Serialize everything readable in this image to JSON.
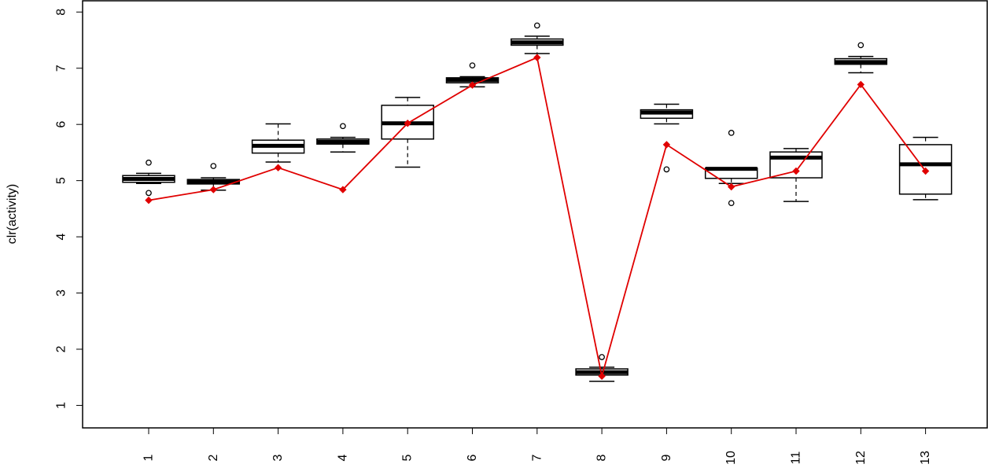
{
  "chart_data": {
    "type": "box",
    "ylabel": "clr(activity)",
    "ylim": [
      0.6,
      8.2
    ],
    "yticks": [
      "1",
      "2",
      "3",
      "4",
      "5",
      "6",
      "7",
      "8"
    ],
    "categories": [
      "1",
      "2",
      "3",
      "4",
      "5",
      "6",
      "7",
      "8",
      "9",
      "10",
      "11",
      "12",
      "13"
    ],
    "boxes": [
      {
        "whisker_low": 4.95,
        "q1": 4.97,
        "median": 5.03,
        "q3": 5.09,
        "whisker_high": 5.13,
        "outliers": [
          4.78,
          5.32
        ]
      },
      {
        "whisker_low": 4.83,
        "q1": 4.94,
        "median": 4.98,
        "q3": 5.02,
        "whisker_high": 5.05,
        "outliers": [
          5.26
        ]
      },
      {
        "whisker_low": 5.33,
        "q1": 5.49,
        "median": 5.62,
        "q3": 5.72,
        "whisker_high": 6.01,
        "outliers": []
      },
      {
        "whisker_low": 5.51,
        "q1": 5.65,
        "median": 5.69,
        "q3": 5.74,
        "whisker_high": 5.77,
        "outliers": [
          5.97
        ]
      },
      {
        "whisker_low": 5.24,
        "q1": 5.74,
        "median": 6.02,
        "q3": 6.34,
        "whisker_high": 6.48,
        "outliers": []
      },
      {
        "whisker_low": 6.67,
        "q1": 6.74,
        "median": 6.79,
        "q3": 6.83,
        "whisker_high": 6.85,
        "outliers": [
          7.05
        ]
      },
      {
        "whisker_low": 7.26,
        "q1": 7.41,
        "median": 7.46,
        "q3": 7.52,
        "whisker_high": 7.57,
        "outliers": [
          7.76
        ]
      },
      {
        "whisker_low": 1.43,
        "q1": 1.54,
        "median": 1.59,
        "q3": 1.65,
        "whisker_high": 1.68,
        "outliers": [
          1.86
        ]
      },
      {
        "whisker_low": 6.01,
        "q1": 6.11,
        "median": 6.21,
        "q3": 6.26,
        "whisker_high": 6.36,
        "outliers": [
          5.2
        ]
      },
      {
        "whisker_low": 4.95,
        "q1": 5.04,
        "median": 5.21,
        "q3": 5.22,
        "whisker_high": 5.22,
        "outliers": [
          4.6,
          5.85
        ]
      },
      {
        "whisker_low": 4.63,
        "q1": 5.05,
        "median": 5.41,
        "q3": 5.51,
        "whisker_high": 5.57,
        "outliers": []
      },
      {
        "whisker_low": 6.92,
        "q1": 7.07,
        "median": 7.11,
        "q3": 7.17,
        "whisker_high": 7.21,
        "outliers": [
          7.41
        ]
      },
      {
        "whisker_low": 4.66,
        "q1": 4.76,
        "median": 5.29,
        "q3": 5.64,
        "whisker_high": 5.77,
        "outliers": []
      }
    ],
    "overlay_series": {
      "type": "line",
      "color": "#e00000",
      "values": [
        4.65,
        4.84,
        5.23,
        4.84,
        6.02,
        6.7,
        7.19,
        1.52,
        5.64,
        4.89,
        5.17,
        6.71,
        5.17
      ]
    },
    "box_color": "#000000",
    "box_fill": "#ffffff",
    "grid": false
  }
}
